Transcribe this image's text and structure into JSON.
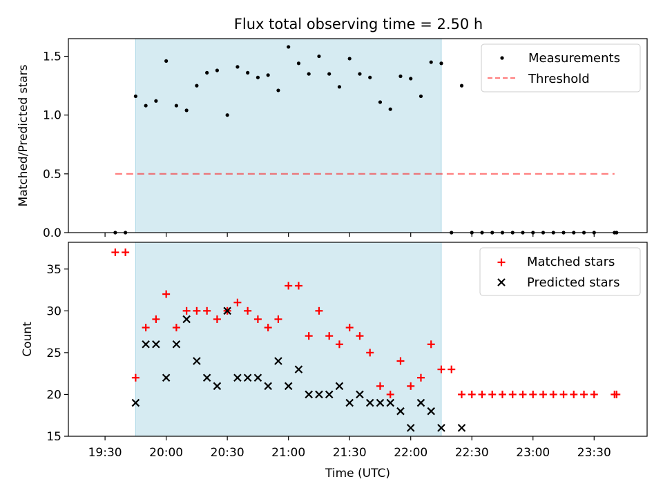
{
  "title": "Flux total observing time = 2.50 h",
  "colors": {
    "highlight": "#add8e6",
    "measurement": "#000000",
    "threshold": "#ff0000",
    "matched": "#ff0000",
    "predicted": "#000000"
  },
  "chart_data": [
    {
      "type": "scatter",
      "ylabel": "Matched/Predicted stars",
      "ylim": [
        0,
        1.65
      ],
      "yticks": [
        0.0,
        0.5,
        1.0,
        1.5
      ],
      "ytick_labels": [
        "0.0",
        "0.5",
        "1.0",
        "1.5"
      ],
      "xlim": [
        "19:12",
        "23:56"
      ],
      "highlight_span": [
        "19:45",
        "22:15"
      ],
      "legend": {
        "placement": "top-right",
        "entries": [
          "Measurements",
          "Threshold"
        ]
      },
      "threshold": {
        "y": 0.5,
        "x_start": "19:35",
        "x_end": "23:40",
        "style": "dashed"
      },
      "series": [
        {
          "name": "Measurements",
          "x": [
            "19:35",
            "19:40",
            "19:45",
            "19:50",
            "19:55",
            "20:00",
            "20:05",
            "20:10",
            "20:15",
            "20:20",
            "20:25",
            "20:30",
            "20:35",
            "20:40",
            "20:45",
            "20:50",
            "20:55",
            "21:00",
            "21:05",
            "21:10",
            "21:15",
            "21:20",
            "21:25",
            "21:30",
            "21:35",
            "21:40",
            "21:45",
            "21:50",
            "21:55",
            "22:00",
            "22:05",
            "22:10",
            "22:15",
            "22:20",
            "22:25",
            "22:30",
            "22:35",
            "22:40",
            "22:45",
            "22:50",
            "22:55",
            "23:00",
            "23:05",
            "23:10",
            "23:15",
            "23:20",
            "23:25",
            "23:30",
            "23:40",
            "23:41"
          ],
          "y": [
            0,
            0,
            1.16,
            1.08,
            1.12,
            1.46,
            1.08,
            1.04,
            1.25,
            1.36,
            1.38,
            1.0,
            1.41,
            1.36,
            1.32,
            1.34,
            1.21,
            1.58,
            1.44,
            1.35,
            1.5,
            1.35,
            1.24,
            1.48,
            1.35,
            1.32,
            1.11,
            1.05,
            1.33,
            1.31,
            1.16,
            1.45,
            1.44,
            0,
            1.25,
            0,
            0,
            0,
            0,
            0,
            0,
            0,
            0,
            0,
            0,
            0,
            0,
            0,
            0,
            0
          ]
        }
      ]
    },
    {
      "type": "scatter",
      "xlabel": "Time (UTC)",
      "ylabel": "Count",
      "ylim": [
        15,
        38.2
      ],
      "yticks": [
        15,
        20,
        25,
        30,
        35
      ],
      "ytick_labels": [
        "15",
        "20",
        "25",
        "30",
        "35"
      ],
      "xlim": [
        "19:12",
        "23:56"
      ],
      "xticks": [
        "19:30",
        "20:00",
        "20:30",
        "21:00",
        "21:30",
        "22:00",
        "22:30",
        "23:00",
        "23:30"
      ],
      "highlight_span": [
        "19:45",
        "22:15"
      ],
      "legend": {
        "placement": "top-right",
        "entries": [
          "Matched stars",
          "Predicted stars"
        ]
      },
      "series": [
        {
          "name": "Matched stars",
          "marker": "+",
          "x": [
            "19:35",
            "19:40",
            "19:45",
            "19:50",
            "19:55",
            "20:00",
            "20:05",
            "20:10",
            "20:15",
            "20:20",
            "20:25",
            "20:30",
            "20:35",
            "20:40",
            "20:45",
            "20:50",
            "20:55",
            "21:00",
            "21:05",
            "21:10",
            "21:15",
            "21:20",
            "21:25",
            "21:30",
            "21:35",
            "21:40",
            "21:45",
            "21:50",
            "21:55",
            "22:00",
            "22:05",
            "22:10",
            "22:15",
            "22:20",
            "22:25",
            "22:30",
            "22:35",
            "22:40",
            "22:45",
            "22:50",
            "22:55",
            "23:00",
            "23:05",
            "23:10",
            "23:15",
            "23:20",
            "23:25",
            "23:30",
            "23:40",
            "23:41"
          ],
          "y": [
            37,
            37,
            22,
            28,
            29,
            32,
            28,
            30,
            30,
            30,
            29,
            30,
            31,
            30,
            29,
            28,
            29,
            33,
            33,
            27,
            30,
            27,
            26,
            28,
            27,
            25,
            21,
            20,
            24,
            21,
            22,
            26,
            23,
            23,
            20,
            20,
            20,
            20,
            20,
            20,
            20,
            20,
            20,
            20,
            20,
            20,
            20,
            20,
            20,
            20
          ]
        },
        {
          "name": "Predicted stars",
          "marker": "x",
          "x": [
            "19:45",
            "19:50",
            "19:55",
            "20:00",
            "20:05",
            "20:10",
            "20:15",
            "20:20",
            "20:25",
            "20:30",
            "20:35",
            "20:40",
            "20:45",
            "20:50",
            "20:55",
            "21:00",
            "21:05",
            "21:10",
            "21:15",
            "21:20",
            "21:25",
            "21:30",
            "21:35",
            "21:40",
            "21:45",
            "21:50",
            "21:55",
            "22:00",
            "22:05",
            "22:10",
            "22:15",
            "22:25"
          ],
          "y": [
            19,
            26,
            26,
            22,
            26,
            29,
            24,
            22,
            21,
            30,
            22,
            22,
            22,
            21,
            24,
            21,
            23,
            20,
            20,
            20,
            21,
            19,
            20,
            19,
            19,
            19,
            18,
            16,
            19,
            18,
            16,
            16
          ]
        }
      ]
    }
  ]
}
